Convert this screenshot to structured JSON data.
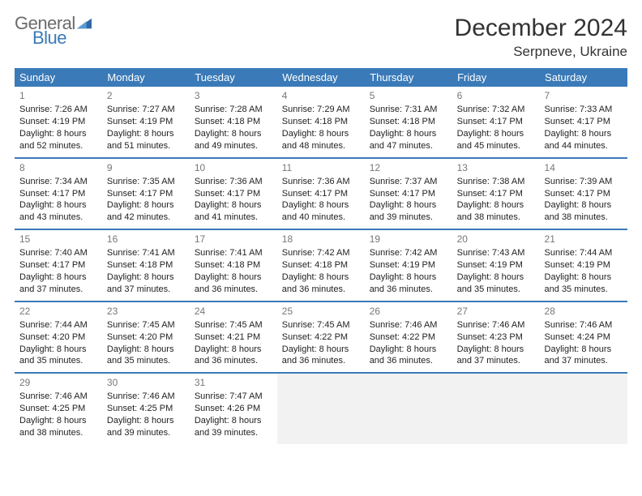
{
  "logo": {
    "line1": "General",
    "line2": "Blue"
  },
  "title": "December 2024",
  "location": "Serpneve, Ukraine",
  "colors": {
    "header_bg": "#3a7ab8",
    "header_text": "#ffffff",
    "border": "#3a7ab8",
    "daynum": "#777777",
    "text": "#222222",
    "logo_gray": "#6b6b6b",
    "logo_blue": "#3a7ab8",
    "empty_bg": "#f2f2f2"
  },
  "weekdays": [
    "Sunday",
    "Monday",
    "Tuesday",
    "Wednesday",
    "Thursday",
    "Friday",
    "Saturday"
  ],
  "weeks": [
    [
      {
        "num": "1",
        "sunrise": "Sunrise: 7:26 AM",
        "sunset": "Sunset: 4:19 PM",
        "daylight": "Daylight: 8 hours and 52 minutes."
      },
      {
        "num": "2",
        "sunrise": "Sunrise: 7:27 AM",
        "sunset": "Sunset: 4:19 PM",
        "daylight": "Daylight: 8 hours and 51 minutes."
      },
      {
        "num": "3",
        "sunrise": "Sunrise: 7:28 AM",
        "sunset": "Sunset: 4:18 PM",
        "daylight": "Daylight: 8 hours and 49 minutes."
      },
      {
        "num": "4",
        "sunrise": "Sunrise: 7:29 AM",
        "sunset": "Sunset: 4:18 PM",
        "daylight": "Daylight: 8 hours and 48 minutes."
      },
      {
        "num": "5",
        "sunrise": "Sunrise: 7:31 AM",
        "sunset": "Sunset: 4:18 PM",
        "daylight": "Daylight: 8 hours and 47 minutes."
      },
      {
        "num": "6",
        "sunrise": "Sunrise: 7:32 AM",
        "sunset": "Sunset: 4:17 PM",
        "daylight": "Daylight: 8 hours and 45 minutes."
      },
      {
        "num": "7",
        "sunrise": "Sunrise: 7:33 AM",
        "sunset": "Sunset: 4:17 PM",
        "daylight": "Daylight: 8 hours and 44 minutes."
      }
    ],
    [
      {
        "num": "8",
        "sunrise": "Sunrise: 7:34 AM",
        "sunset": "Sunset: 4:17 PM",
        "daylight": "Daylight: 8 hours and 43 minutes."
      },
      {
        "num": "9",
        "sunrise": "Sunrise: 7:35 AM",
        "sunset": "Sunset: 4:17 PM",
        "daylight": "Daylight: 8 hours and 42 minutes."
      },
      {
        "num": "10",
        "sunrise": "Sunrise: 7:36 AM",
        "sunset": "Sunset: 4:17 PM",
        "daylight": "Daylight: 8 hours and 41 minutes."
      },
      {
        "num": "11",
        "sunrise": "Sunrise: 7:36 AM",
        "sunset": "Sunset: 4:17 PM",
        "daylight": "Daylight: 8 hours and 40 minutes."
      },
      {
        "num": "12",
        "sunrise": "Sunrise: 7:37 AM",
        "sunset": "Sunset: 4:17 PM",
        "daylight": "Daylight: 8 hours and 39 minutes."
      },
      {
        "num": "13",
        "sunrise": "Sunrise: 7:38 AM",
        "sunset": "Sunset: 4:17 PM",
        "daylight": "Daylight: 8 hours and 38 minutes."
      },
      {
        "num": "14",
        "sunrise": "Sunrise: 7:39 AM",
        "sunset": "Sunset: 4:17 PM",
        "daylight": "Daylight: 8 hours and 38 minutes."
      }
    ],
    [
      {
        "num": "15",
        "sunrise": "Sunrise: 7:40 AM",
        "sunset": "Sunset: 4:17 PM",
        "daylight": "Daylight: 8 hours and 37 minutes."
      },
      {
        "num": "16",
        "sunrise": "Sunrise: 7:41 AM",
        "sunset": "Sunset: 4:18 PM",
        "daylight": "Daylight: 8 hours and 37 minutes."
      },
      {
        "num": "17",
        "sunrise": "Sunrise: 7:41 AM",
        "sunset": "Sunset: 4:18 PM",
        "daylight": "Daylight: 8 hours and 36 minutes."
      },
      {
        "num": "18",
        "sunrise": "Sunrise: 7:42 AM",
        "sunset": "Sunset: 4:18 PM",
        "daylight": "Daylight: 8 hours and 36 minutes."
      },
      {
        "num": "19",
        "sunrise": "Sunrise: 7:42 AM",
        "sunset": "Sunset: 4:19 PM",
        "daylight": "Daylight: 8 hours and 36 minutes."
      },
      {
        "num": "20",
        "sunrise": "Sunrise: 7:43 AM",
        "sunset": "Sunset: 4:19 PM",
        "daylight": "Daylight: 8 hours and 35 minutes."
      },
      {
        "num": "21",
        "sunrise": "Sunrise: 7:44 AM",
        "sunset": "Sunset: 4:19 PM",
        "daylight": "Daylight: 8 hours and 35 minutes."
      }
    ],
    [
      {
        "num": "22",
        "sunrise": "Sunrise: 7:44 AM",
        "sunset": "Sunset: 4:20 PM",
        "daylight": "Daylight: 8 hours and 35 minutes."
      },
      {
        "num": "23",
        "sunrise": "Sunrise: 7:45 AM",
        "sunset": "Sunset: 4:20 PM",
        "daylight": "Daylight: 8 hours and 35 minutes."
      },
      {
        "num": "24",
        "sunrise": "Sunrise: 7:45 AM",
        "sunset": "Sunset: 4:21 PM",
        "daylight": "Daylight: 8 hours and 36 minutes."
      },
      {
        "num": "25",
        "sunrise": "Sunrise: 7:45 AM",
        "sunset": "Sunset: 4:22 PM",
        "daylight": "Daylight: 8 hours and 36 minutes."
      },
      {
        "num": "26",
        "sunrise": "Sunrise: 7:46 AM",
        "sunset": "Sunset: 4:22 PM",
        "daylight": "Daylight: 8 hours and 36 minutes."
      },
      {
        "num": "27",
        "sunrise": "Sunrise: 7:46 AM",
        "sunset": "Sunset: 4:23 PM",
        "daylight": "Daylight: 8 hours and 37 minutes."
      },
      {
        "num": "28",
        "sunrise": "Sunrise: 7:46 AM",
        "sunset": "Sunset: 4:24 PM",
        "daylight": "Daylight: 8 hours and 37 minutes."
      }
    ],
    [
      {
        "num": "29",
        "sunrise": "Sunrise: 7:46 AM",
        "sunset": "Sunset: 4:25 PM",
        "daylight": "Daylight: 8 hours and 38 minutes."
      },
      {
        "num": "30",
        "sunrise": "Sunrise: 7:46 AM",
        "sunset": "Sunset: 4:25 PM",
        "daylight": "Daylight: 8 hours and 39 minutes."
      },
      {
        "num": "31",
        "sunrise": "Sunrise: 7:47 AM",
        "sunset": "Sunset: 4:26 PM",
        "daylight": "Daylight: 8 hours and 39 minutes."
      },
      null,
      null,
      null,
      null
    ]
  ]
}
